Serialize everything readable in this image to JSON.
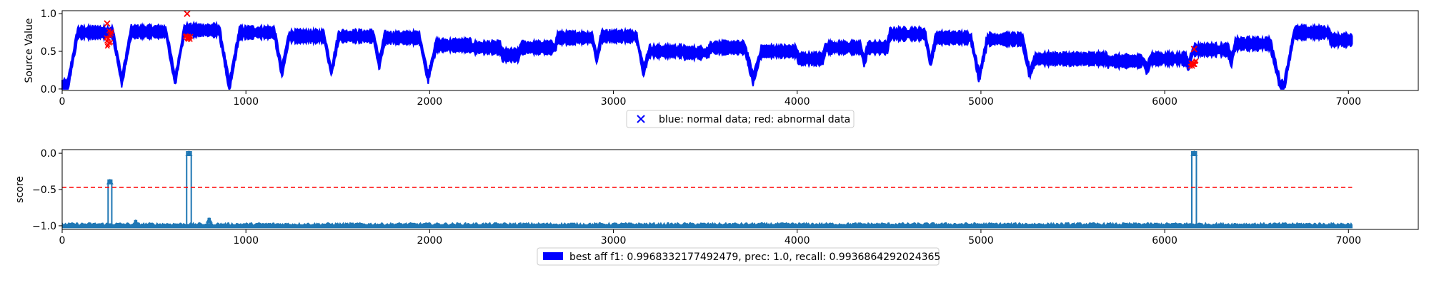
{
  "chart_data": [
    {
      "type": "scatter",
      "title": "",
      "xlabel": "",
      "ylabel": "Source Value",
      "xlim": [
        0,
        7380
      ],
      "ylim": [
        -0.02,
        1.04
      ],
      "x_ticks": [
        0,
        1000,
        2000,
        3000,
        4000,
        5000,
        6000,
        7000
      ],
      "y_ticks": [
        0.0,
        0.5,
        1.0
      ],
      "x_tick_labels": [
        "0",
        "1000",
        "2000",
        "3000",
        "4000",
        "5000",
        "6000",
        "7000"
      ],
      "y_tick_labels": [
        "0.0",
        "0.5",
        "1.0"
      ],
      "grid": false,
      "legend_placement": "bottom-center",
      "legend_text": "blue: normal data; red: abnormal data",
      "marker": "x",
      "normal_color": "#0000ff",
      "abnormal_color": "#ff0000",
      "n_points": 7020,
      "cycle_peaks": [
        {
          "center": 180,
          "peak": 0.75
        },
        {
          "center": 470,
          "peak": 0.76
        },
        {
          "center": 760,
          "peak": 0.78
        },
        {
          "center": 1060,
          "peak": 0.75
        },
        {
          "center": 1330,
          "peak": 0.7
        },
        {
          "center": 1600,
          "peak": 0.7
        },
        {
          "center": 1850,
          "peak": 0.68
        },
        {
          "center": 2130,
          "peak": 0.58
        },
        {
          "center": 2290,
          "peak": 0.55
        },
        {
          "center": 2460,
          "peak": 0.45
        },
        {
          "center": 2590,
          "peak": 0.55
        },
        {
          "center": 2790,
          "peak": 0.68
        },
        {
          "center": 3030,
          "peak": 0.7
        },
        {
          "center": 3290,
          "peak": 0.5
        },
        {
          "center": 3460,
          "peak": 0.48
        },
        {
          "center": 3620,
          "peak": 0.55
        },
        {
          "center": 3900,
          "peak": 0.5
        },
        {
          "center": 4100,
          "peak": 0.4
        },
        {
          "center": 4250,
          "peak": 0.55
        },
        {
          "center": 4480,
          "peak": 0.55
        },
        {
          "center": 4600,
          "peak": 0.73
        },
        {
          "center": 4850,
          "peak": 0.68
        },
        {
          "center": 5130,
          "peak": 0.66
        },
        {
          "center": 5390,
          "peak": 0.4
        },
        {
          "center": 5590,
          "peak": 0.4
        },
        {
          "center": 5790,
          "peak": 0.37
        },
        {
          "center": 6020,
          "peak": 0.4
        },
        {
          "center": 6250,
          "peak": 0.52
        },
        {
          "center": 6480,
          "peak": 0.6
        },
        {
          "center": 6800,
          "peak": 0.75
        },
        {
          "center": 6990,
          "peak": 0.65
        }
      ],
      "anomaly_segments": [
        {
          "x_start": 240,
          "x_end": 270,
          "y_min": 0.55,
          "y_max": 0.8,
          "marker_x": 245,
          "marker_y": 0.87
        },
        {
          "x_start": 670,
          "x_end": 700,
          "y_min": 0.65,
          "y_max": 0.75,
          "marker_x": 680,
          "marker_y": 1.0
        },
        {
          "x_start": 6140,
          "x_end": 6170,
          "y_min": 0.3,
          "y_max": 0.38,
          "marker_x": 6160,
          "marker_y": 0.53
        }
      ]
    },
    {
      "type": "area",
      "title": "",
      "xlabel": "",
      "ylabel": "score",
      "xlim": [
        0,
        7380
      ],
      "ylim": [
        -1.05,
        0.05
      ],
      "x_ticks": [
        0,
        1000,
        2000,
        3000,
        4000,
        5000,
        6000,
        7000
      ],
      "y_ticks": [
        0.0,
        -0.5,
        -1.0
      ],
      "x_tick_labels": [
        "0",
        "1000",
        "2000",
        "3000",
        "4000",
        "5000",
        "6000",
        "7000"
      ],
      "y_tick_labels": [
        "0.0",
        "−0.5",
        "−1.0"
      ],
      "grid": false,
      "series_color": "#1f77b4",
      "baseline": -1.0,
      "threshold": -0.47,
      "threshold_color": "#ff0000",
      "threshold_style": "dashed",
      "spikes": [
        {
          "x": 260,
          "y": -0.37,
          "width": 20
        },
        {
          "x": 690,
          "y": 0.02,
          "width": 25
        },
        {
          "x": 800,
          "y": -0.9,
          "width": 10
        },
        {
          "x": 400,
          "y": -0.93,
          "width": 10
        },
        {
          "x": 6160,
          "y": 0.02,
          "width": 25
        }
      ],
      "legend_placement": "bottom-center",
      "legend_text": "best aff f1: 0.9968332177492479, prec: 1.0, recall: 0.9936864292024365",
      "legend_patch_color": "#0000ff"
    }
  ]
}
